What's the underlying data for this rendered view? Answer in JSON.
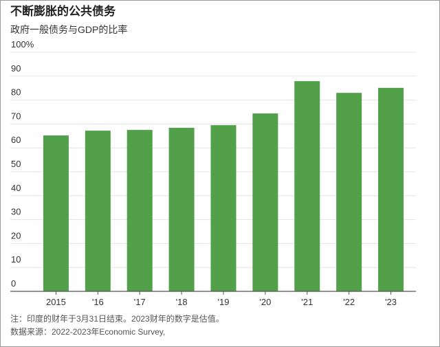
{
  "chart_data": {
    "type": "bar",
    "title": "不断膨胀的公共债务",
    "subtitle": "政府一般债务与GDP的比率",
    "categories": [
      "2015",
      "'16",
      "'17",
      "'18",
      "'19",
      "'20",
      "'21",
      "'22",
      "'23"
    ],
    "values": [
      65.2,
      67.2,
      67.5,
      68.4,
      69.5,
      74.4,
      87.9,
      83.0,
      85.1
    ],
    "color": "#52a049",
    "ylim": [
      0,
      100
    ],
    "yticks": [
      0,
      10,
      20,
      30,
      40,
      50,
      60,
      70,
      80,
      90,
      {
        "value": 100,
        "label": "100%"
      }
    ],
    "grid": true,
    "notes": [
      "注：印度的财年于3月31日结束。2023财年的数字是估值。",
      "数据来源：2022-2023年Economic Survey,"
    ]
  }
}
